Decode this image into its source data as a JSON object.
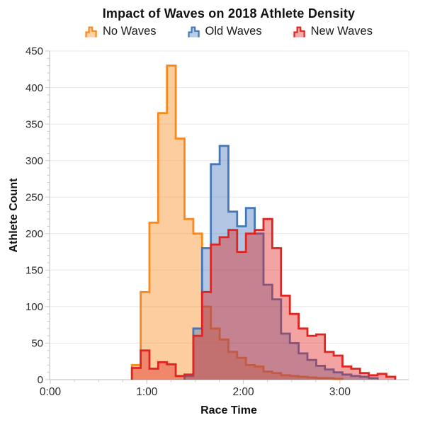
{
  "title": "Impact of Waves on 2018 Athlete Density",
  "legend": [
    {
      "label": "No Waves",
      "color": "#F9891B"
    },
    {
      "label": "Old Waves",
      "color": "#4478BA"
    },
    {
      "label": "New Waves",
      "color": "#E02421"
    }
  ],
  "chart_data": {
    "type": "histogram",
    "title": "Impact of Waves on 2018 Athlete Density",
    "xlabel": "Race Time",
    "ylabel": "Athlete Count",
    "x_tick_labels": [
      "0:00",
      "1:00",
      "2:00",
      "3:00"
    ],
    "x_tick_hours": [
      0,
      1,
      2,
      3
    ],
    "x_minor_step_hours": 0.25,
    "xlim_hours": [
      0,
      3.72
    ],
    "ylim": [
      0,
      450
    ],
    "y_tick_step": 50,
    "y_minor_step": 10,
    "grid": "horizontal-only",
    "legend_position": "top",
    "bins": {
      "first_start_hours": 0.845,
      "width_hours": 0.0909,
      "count": 31
    },
    "series": [
      {
        "name": "No Waves",
        "line_color": "#F9891B",
        "fill_opacity": 0.42,
        "values": [
          20,
          120,
          215,
          365,
          430,
          330,
          220,
          200,
          100,
          70,
          55,
          38,
          30,
          20,
          18,
          11,
          9,
          6,
          5,
          4,
          3,
          2,
          2,
          1,
          0,
          0,
          0,
          0,
          0,
          0,
          0
        ]
      },
      {
        "name": "Old Waves",
        "line_color": "#4478BA",
        "fill_opacity": 0.42,
        "values": [
          0,
          0,
          0,
          0,
          0,
          0,
          5,
          70,
          180,
          295,
          320,
          230,
          210,
          235,
          200,
          130,
          110,
          63,
          50,
          36,
          27,
          19,
          14,
          10,
          7,
          5,
          4,
          2,
          0,
          0,
          0
        ]
      },
      {
        "name": "New Waves",
        "line_color": "#E02421",
        "fill_opacity": 0.42,
        "values": [
          16,
          40,
          15,
          24,
          21,
          5,
          7,
          60,
          120,
          185,
          195,
          205,
          175,
          200,
          205,
          220,
          180,
          115,
          90,
          70,
          60,
          62,
          38,
          33,
          18,
          15,
          9,
          6,
          8,
          4,
          0
        ]
      }
    ]
  }
}
